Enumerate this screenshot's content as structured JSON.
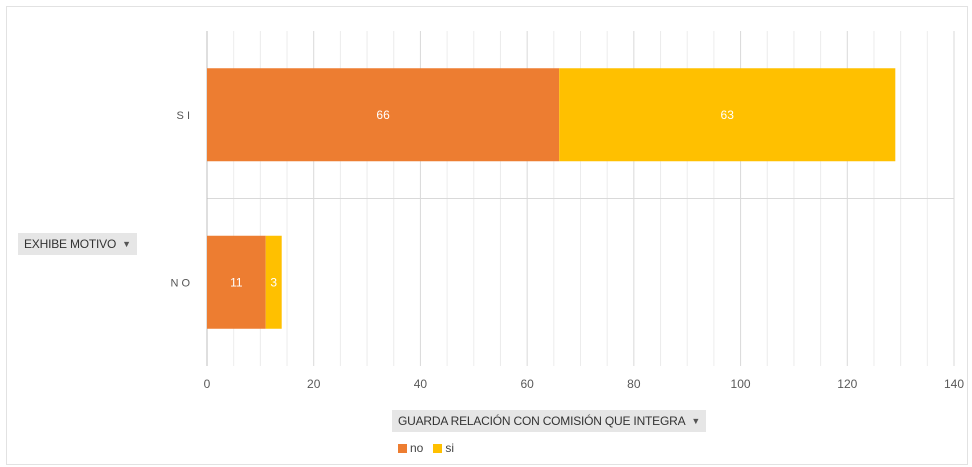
{
  "chart_data": {
    "type": "bar",
    "orientation": "horizontal",
    "stacked": true,
    "categories": [
      "S I",
      "N O"
    ],
    "series": [
      {
        "name": "no",
        "values": [
          66,
          11
        ],
        "color": "#ED7D31"
      },
      {
        "name": "si",
        "values": [
          63,
          3
        ],
        "color": "#FFC000"
      }
    ],
    "xlim": [
      0,
      140
    ],
    "xticks": [
      0,
      20,
      40,
      60,
      80,
      100,
      120,
      140
    ],
    "grid": true,
    "legend": "bottom",
    "row_field": "EXHIBE MOTIVO",
    "column_field": "GUARDA RELACIÓN CON COMISIÓN QUE INTEGRA"
  }
}
